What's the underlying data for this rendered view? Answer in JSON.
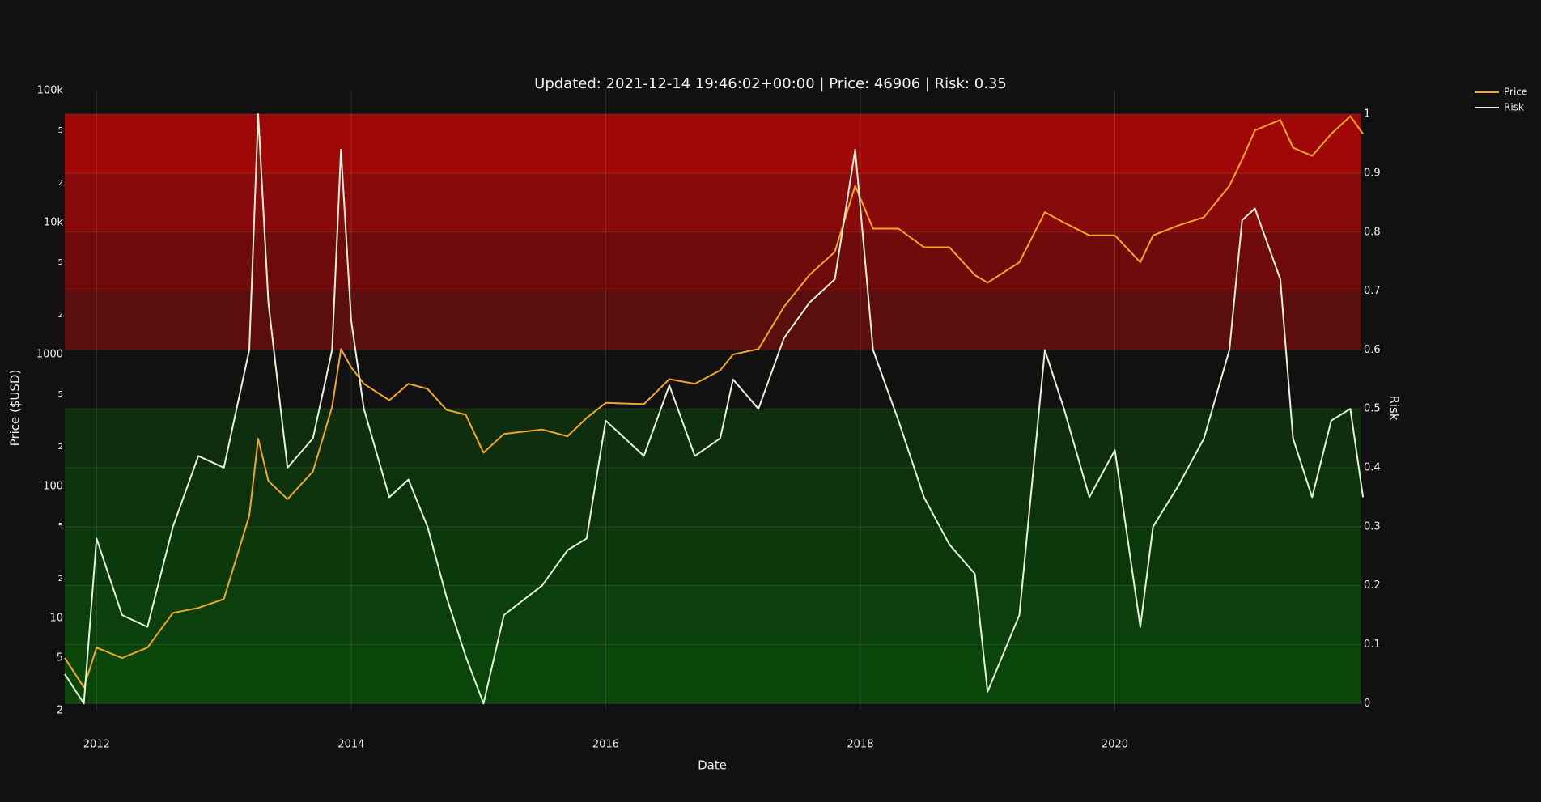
{
  "chart_data": {
    "type": "line",
    "title": "Updated: 2021-12-14 19:46:02+00:00 | Price: 46906 | Risk: 0.35",
    "x_label": "Date",
    "y_label": "Price ($USD)",
    "y2_label": "Risk",
    "x": [
      2011.75,
      2011.9,
      2012.0,
      2012.2,
      2012.4,
      2012.6,
      2012.8,
      2013.0,
      2013.2,
      2013.27,
      2013.35,
      2013.5,
      2013.7,
      2013.85,
      2013.92,
      2014.0,
      2014.1,
      2014.3,
      2014.45,
      2014.6,
      2014.75,
      2014.9,
      2015.04,
      2015.2,
      2015.5,
      2015.7,
      2015.85,
      2016.0,
      2016.3,
      2016.5,
      2016.7,
      2016.9,
      2017.0,
      2017.2,
      2017.4,
      2017.6,
      2017.8,
      2017.96,
      2018.1,
      2018.3,
      2018.5,
      2018.7,
      2018.9,
      2019.0,
      2019.25,
      2019.45,
      2019.6,
      2019.8,
      2020.0,
      2020.2,
      2020.3,
      2020.5,
      2020.7,
      2020.9,
      2021.0,
      2021.1,
      2021.3,
      2021.4,
      2021.55,
      2021.7,
      2021.85,
      2021.95
    ],
    "series": [
      {
        "name": "Price",
        "color": "#f5a623",
        "axis": "y",
        "values": [
          5,
          3,
          6,
          5,
          6,
          11,
          12,
          14,
          60,
          230,
          110,
          80,
          130,
          400,
          1100,
          800,
          600,
          450,
          600,
          550,
          380,
          350,
          180,
          250,
          270,
          240,
          330,
          430,
          420,
          650,
          600,
          760,
          1000,
          1100,
          2300,
          4000,
          6000,
          19000,
          9000,
          9000,
          6500,
          6500,
          4000,
          3500,
          5000,
          12000,
          10000,
          8000,
          8000,
          5000,
          8000,
          9500,
          11000,
          19000,
          30000,
          50000,
          60000,
          37000,
          32000,
          47000,
          64000,
          47000
        ]
      },
      {
        "name": "Risk",
        "color": "#e6f2dc",
        "axis": "y2",
        "values": [
          0.05,
          0.0,
          0.28,
          0.15,
          0.13,
          0.3,
          0.42,
          0.4,
          0.6,
          1.0,
          0.68,
          0.4,
          0.45,
          0.6,
          0.94,
          0.65,
          0.5,
          0.35,
          0.38,
          0.3,
          0.18,
          0.08,
          0.0,
          0.15,
          0.2,
          0.26,
          0.28,
          0.48,
          0.42,
          0.54,
          0.42,
          0.45,
          0.55,
          0.5,
          0.62,
          0.68,
          0.72,
          0.94,
          0.6,
          0.48,
          0.35,
          0.27,
          0.22,
          0.02,
          0.15,
          0.6,
          0.5,
          0.35,
          0.43,
          0.13,
          0.3,
          0.37,
          0.45,
          0.6,
          0.82,
          0.84,
          0.72,
          0.45,
          0.35,
          0.48,
          0.5,
          0.35
        ]
      }
    ],
    "bands": [
      {
        "from": 0.9,
        "to": 1,
        "color": "#a00808"
      },
      {
        "from": 0.8,
        "to": 0.9,
        "color": "#890a0a"
      },
      {
        "from": 0.7,
        "to": 0.8,
        "color": "#700b0b"
      },
      {
        "from": 0.6,
        "to": 0.7,
        "color": "#5a0e0e"
      },
      {
        "from": 0.4,
        "to": 0.5,
        "color": "#0e2e0e"
      },
      {
        "from": 0.3,
        "to": 0.4,
        "color": "#0d330d"
      },
      {
        "from": 0.2,
        "to": 0.3,
        "color": "#0c390c"
      },
      {
        "from": 0.1,
        "to": 0.2,
        "color": "#0b3f0b"
      },
      {
        "from": 0,
        "to": 0.1,
        "color": "#0a450a"
      }
    ],
    "xlim": [
      2011.75,
      2021.93
    ],
    "xticks": [
      2012,
      2014,
      2016,
      2018,
      2020
    ],
    "log_y": true,
    "ylim": [
      2,
      100000
    ],
    "yticks": [
      2,
      5,
      10,
      {
        "value": 20,
        "label": "2"
      },
      {
        "value": 50,
        "label": "5"
      },
      100,
      {
        "value": 200,
        "label": "2"
      },
      {
        "value": 500,
        "label": "5"
      },
      1000,
      {
        "value": 2000,
        "label": "2"
      },
      {
        "value": 5000,
        "label": "5"
      },
      {
        "value": 10000,
        "label": "10k"
      },
      {
        "value": 20000,
        "label": "2"
      },
      {
        "value": 50000,
        "label": "5"
      },
      {
        "value": 100000,
        "label": "100k"
      }
    ],
    "y2lim": [
      -0.012,
      1.04
    ],
    "y2ticks": [
      0,
      0.1,
      0.2,
      0.3,
      0.4,
      0.5,
      0.6,
      0.7,
      0.8,
      0.9,
      1
    ],
    "grid": true,
    "legend": "top-right"
  }
}
